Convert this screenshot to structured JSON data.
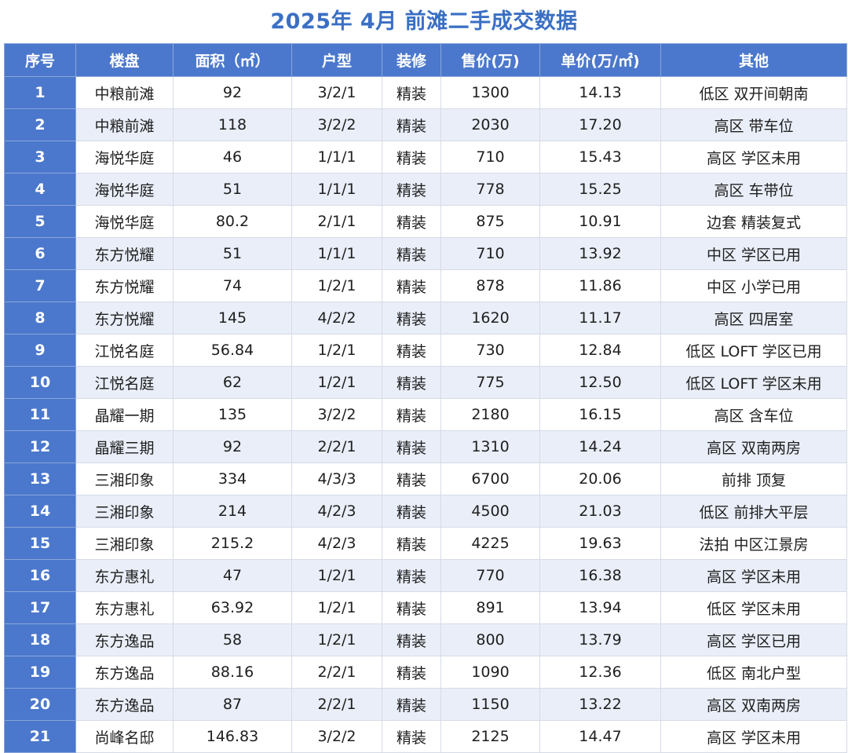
{
  "title": "2025年 4月  前滩二手成交数据",
  "headers": [
    "序号",
    "楼盘",
    "面积（㎡）",
    "户型",
    "装修",
    "售价(万)",
    "单价(万/㎡)",
    "其他"
  ],
  "rows": [
    [
      "1",
      "中粮前滩",
      "92",
      "3/2/1",
      "精装",
      "1300",
      "14.13",
      "低区  双开间朝南"
    ],
    [
      "2",
      "中粮前滩",
      "118",
      "3/2/2",
      "精装",
      "2030",
      "17.20",
      "高区 带车位"
    ],
    [
      "3",
      "海悦华庭",
      "46",
      "1/1/1",
      "精装",
      "710",
      "15.43",
      "高区 学区未用"
    ],
    [
      "4",
      "海悦华庭",
      "51",
      "1/1/1",
      "精装",
      "778",
      "15.25",
      "高区 车带位"
    ],
    [
      "5",
      "海悦华庭",
      "80.2",
      "2/1/1",
      "精装",
      "875",
      "10.91",
      "边套 精装复式"
    ],
    [
      "6",
      "东方悦耀",
      "51",
      "1/1/1",
      "精装",
      "710",
      "13.92",
      "中区 学区已用"
    ],
    [
      "7",
      "东方悦耀",
      "74",
      "1/2/1",
      "精装",
      "878",
      "11.86",
      "中区 小学已用"
    ],
    [
      "8",
      "东方悦耀",
      "145",
      "4/2/2",
      "精装",
      "1620",
      "11.17",
      "高区 四居室"
    ],
    [
      "9",
      "江悦名庭",
      "56.84",
      "1/2/1",
      "精装",
      "730",
      "12.84",
      "低区 LOFT 学区已用"
    ],
    [
      "10",
      "江悦名庭",
      "62",
      "1/2/1",
      "精装",
      "775",
      "12.50",
      "低区 LOFT 学区未用"
    ],
    [
      "11",
      "晶耀一期",
      "135",
      "3/2/2",
      "精装",
      "2180",
      "16.15",
      "高区 含车位"
    ],
    [
      "12",
      "晶耀三期",
      "92",
      "2/2/1",
      "精装",
      "1310",
      "14.24",
      "高区 双南两房"
    ],
    [
      "13",
      "三湘印象",
      "334",
      "4/3/3",
      "精装",
      "6700",
      "20.06",
      "前排 顶复"
    ],
    [
      "14",
      "三湘印象",
      "214",
      "4/2/3",
      "精装",
      "4500",
      "21.03",
      "低区 前排大平层"
    ],
    [
      "15",
      "三湘印象",
      "215.2",
      "4/2/3",
      "精装",
      "4225",
      "19.63",
      "法拍 中区江景房"
    ],
    [
      "16",
      "东方惠礼",
      "47",
      "1/2/1",
      "精装",
      "770",
      "16.38",
      "高区 学区未用"
    ],
    [
      "17",
      "东方惠礼",
      "63.92",
      "1/2/1",
      "精装",
      "891",
      "13.94",
      "低区 学区未用"
    ],
    [
      "18",
      "东方逸品",
      "58",
      "1/2/1",
      "精装",
      "800",
      "13.79",
      "高区 学区已用"
    ],
    [
      "19",
      "东方逸品",
      "88.16",
      "2/2/1",
      "精装",
      "1090",
      "12.36",
      "低区 南北户型"
    ],
    [
      "20",
      "东方逸品",
      "87",
      "2/2/1",
      "精装",
      "1150",
      "13.22",
      "高区 双南两房"
    ],
    [
      "21",
      "尚峰名邸",
      "146.83",
      "3/2/2",
      "精装",
      "2125",
      "14.47",
      "高区 学区未用"
    ]
  ],
  "colors": {
    "header_bg": "#4b78cc",
    "title": "#3a6fc4",
    "stripe": "#e9eef8"
  }
}
